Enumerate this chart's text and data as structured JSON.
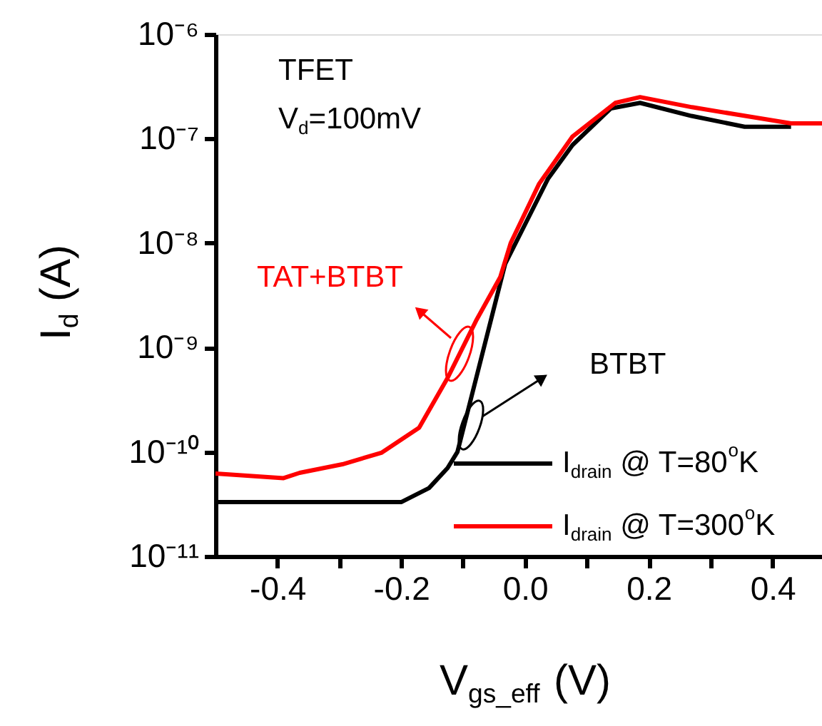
{
  "chart_data": {
    "type": "line",
    "xlabel": "V$_{gs_eff}$ (V)",
    "ylabel": "I$_{d}$ (A)",
    "annotations": [
      "TFET",
      "V$_{d}$=100mV",
      "TAT+BTBT",
      "BTBT"
    ],
    "series": [
      {
        "name": "I$_{drain}$ @ T=80$^{o}$K",
        "color": "#000000",
        "x": [
          -0.5,
          -0.4,
          -0.3,
          -0.2,
          -0.155,
          -0.125,
          -0.109,
          -0.032,
          0.0,
          0.037,
          0.077,
          0.139,
          0.186,
          0.269,
          0.355,
          0.43
        ],
        "values": [
          3.3e-11,
          3.3e-11,
          3.3e-11,
          3.3e-11,
          4.5e-11,
          7e-11,
          1e-10,
          6.3e-09,
          1.5e-08,
          4.1e-08,
          8.7e-08,
          1.95e-07,
          2.2e-07,
          1.65e-07,
          1.3e-07,
          1.3e-07
        ]
      },
      {
        "name": "I$_{drain}$ @ T=300$^{o}$K",
        "color": "#ff0000",
        "x": [
          -0.5,
          -0.39,
          -0.364,
          -0.295,
          -0.232,
          -0.171,
          -0.125,
          -0.079,
          -0.04,
          -0.023,
          0.023,
          0.077,
          0.146,
          0.186,
          0.27,
          0.37,
          0.43,
          0.48
        ],
        "values": [
          6.2e-11,
          5.6e-11,
          6.3e-11,
          7.6e-11,
          9.8e-11,
          1.7e-10,
          5.1e-10,
          1.8e-09,
          4.7e-09,
          1e-08,
          3.7e-08,
          1.05e-07,
          2.2e-07,
          2.5e-07,
          2e-07,
          1.6e-07,
          1.4e-07,
          1.4e-07
        ]
      }
    ],
    "log": "y",
    "xlim": [
      -0.5,
      0.48
    ],
    "ylim": [
      1e-11,
      1e-06
    ],
    "xticks": [
      -0.4,
      {
        "value": -0.3,
        "label": null
      },
      -0.2,
      {
        "value": -0.1,
        "label": null
      },
      {
        "value": 0,
        "label": "0.0"
      },
      {
        "value": 0.1,
        "label": null
      },
      0.2,
      {
        "value": 0.3,
        "label": null
      },
      0.4
    ],
    "yticks": [
      {
        "value": 1e-11,
        "label": "10⁻¹¹"
      },
      {
        "value": 1e-10,
        "label": "10⁻¹⁰"
      },
      {
        "value": 1e-09,
        "label": "10⁻⁹"
      },
      {
        "value": 1e-08,
        "label": "10⁻⁸"
      },
      {
        "value": 1e-07,
        "label": "10⁻⁷"
      },
      {
        "value": 1e-06,
        "label": "10⁻⁶"
      }
    ],
    "grid": false,
    "legend": "bottom right",
    "marker": "none",
    "line_style": "solid"
  }
}
